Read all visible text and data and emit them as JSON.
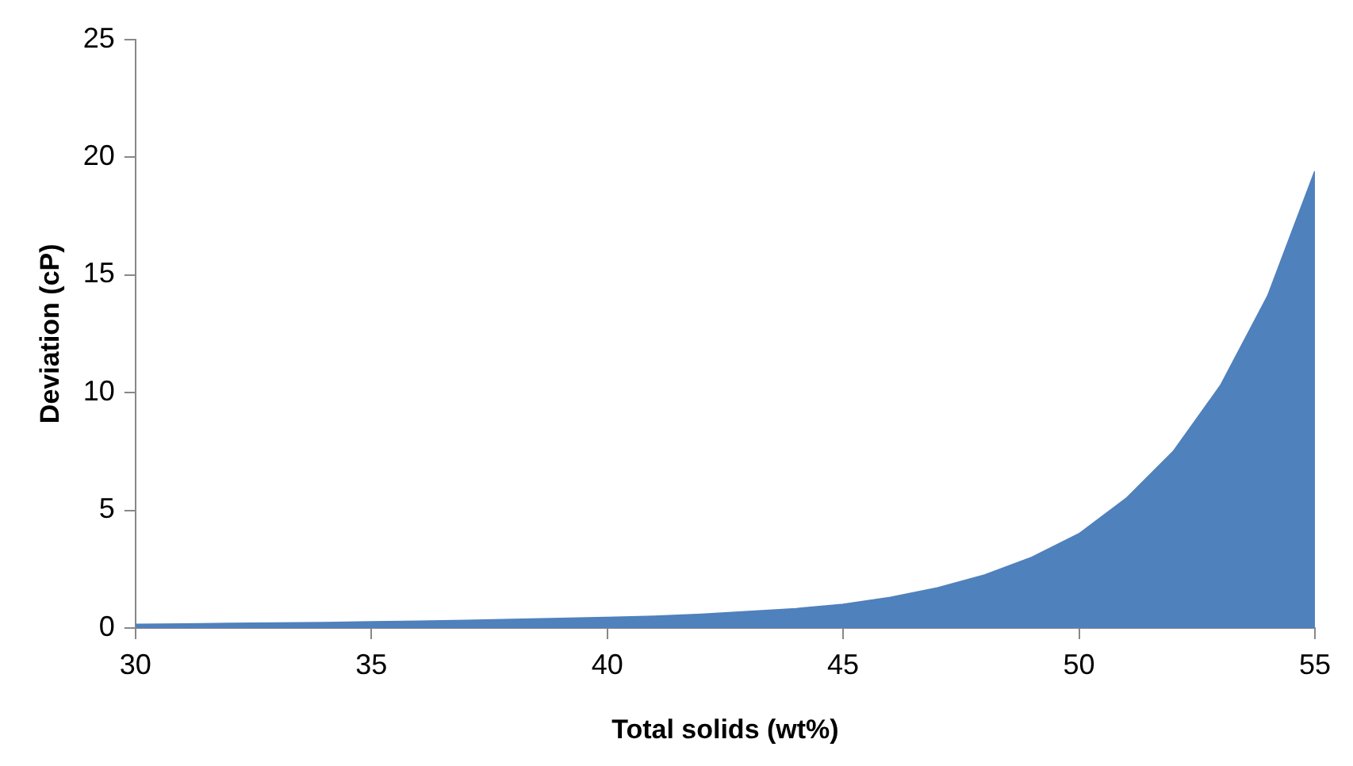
{
  "chart_data": {
    "type": "area",
    "xlabel": "Total solids (wt%)",
    "ylabel": "Deviation (cP)",
    "x": [
      30,
      31,
      32,
      33,
      34,
      35,
      36,
      37,
      38,
      39,
      40,
      41,
      42,
      43,
      44,
      45,
      46,
      47,
      48,
      49,
      50,
      51,
      52,
      53,
      54,
      55
    ],
    "series": [
      {
        "color": "#4f81bd",
        "values": [
          0.15,
          0.17,
          0.19,
          0.21,
          0.23,
          0.26,
          0.29,
          0.32,
          0.36,
          0.4,
          0.45,
          0.5,
          0.58,
          0.7,
          0.82,
          1.0,
          1.3,
          1.7,
          2.25,
          3.0,
          4.0,
          5.5,
          7.5,
          10.3,
          14.1,
          19.4
        ]
      }
    ],
    "xlim": [
      30,
      55
    ],
    "xticks": [
      30,
      35,
      40,
      45,
      50,
      55
    ],
    "ylim": [
      0,
      25
    ],
    "yticks": [
      0,
      5,
      10,
      15,
      20,
      25
    ],
    "grid": false,
    "legend": false
  }
}
